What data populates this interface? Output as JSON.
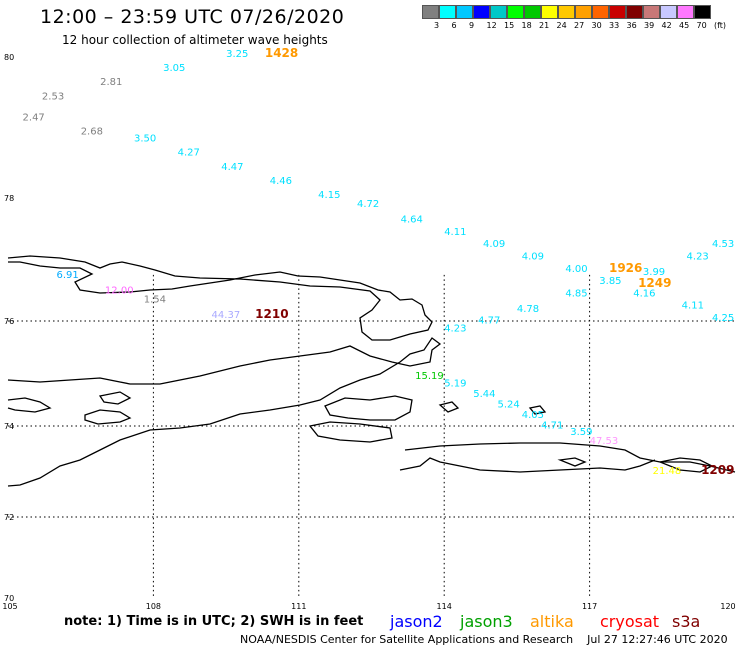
{
  "header": {
    "title": "12:00 – 23:59 UTC 07/26/2020",
    "subtitle": "12 hour collection of altimeter wave heights"
  },
  "color_scale": {
    "colors": [
      "#808080",
      "#00ffff",
      "#00c8ff",
      "#0000ff",
      "#00c8c8",
      "#00ff00",
      "#00c800",
      "#ffff00",
      "#ffc800",
      "#ffa000",
      "#ff6400",
      "#c80000",
      "#800000",
      "#c87878",
      "#c8c8ff",
      "#ff78ff",
      "#000000"
    ],
    "labels": [
      "3",
      "6",
      "9",
      "12",
      "15",
      "18",
      "21",
      "24",
      "27",
      "30",
      "33",
      "36",
      "39",
      "42",
      "45",
      "70",
      "(ft)"
    ]
  },
  "axes": {
    "lat_labels": [
      "80",
      "78",
      "76",
      "74",
      "72",
      "70"
    ],
    "lon_labels": [
      "105",
      "108",
      "111",
      "114",
      "117",
      "120"
    ]
  },
  "observations": [
    {
      "text": "3.25",
      "color": "#00e0ff",
      "lon": 109.5,
      "lat": 80.0
    },
    {
      "text": "1428",
      "color": "#ff9900",
      "lon": 110.3,
      "lat": 80.0,
      "bold": true
    },
    {
      "text": "3.05",
      "color": "#00e0ff",
      "lon": 108.2,
      "lat": 79.8
    },
    {
      "text": "2.81",
      "color": "#808080",
      "lon": 106.9,
      "lat": 79.6
    },
    {
      "text": "2.53",
      "color": "#808080",
      "lon": 105.7,
      "lat": 79.4
    },
    {
      "text": "2.47",
      "color": "#808080",
      "lon": 105.3,
      "lat": 79.1
    },
    {
      "text": "2.68",
      "color": "#808080",
      "lon": 106.5,
      "lat": 78.9
    },
    {
      "text": "3.50",
      "color": "#00e0ff",
      "lon": 107.6,
      "lat": 78.8
    },
    {
      "text": "4.27",
      "color": "#00e0ff",
      "lon": 108.5,
      "lat": 78.6
    },
    {
      "text": "4.47",
      "color": "#00e0ff",
      "lon": 109.4,
      "lat": 78.4
    },
    {
      "text": "4.46",
      "color": "#00e0ff",
      "lon": 110.4,
      "lat": 78.2
    },
    {
      "text": "4.15",
      "color": "#00e0ff",
      "lon": 111.4,
      "lat": 78.0
    },
    {
      "text": "4.72",
      "color": "#00e0ff",
      "lon": 112.2,
      "lat": 77.85
    },
    {
      "text": "4.64",
      "color": "#00e0ff",
      "lon": 113.1,
      "lat": 77.6
    },
    {
      "text": "4.11",
      "color": "#00e0ff",
      "lon": 114.0,
      "lat": 77.4
    },
    {
      "text": "4.09",
      "color": "#00e0ff",
      "lon": 114.8,
      "lat": 77.2
    },
    {
      "text": "4.09",
      "color": "#00e0ff",
      "lon": 115.6,
      "lat": 77.0
    },
    {
      "text": "4.00",
      "color": "#00e0ff",
      "lon": 116.5,
      "lat": 76.8
    },
    {
      "text": "1926",
      "color": "#ff9900",
      "lon": 117.4,
      "lat": 76.8,
      "bold": true
    },
    {
      "text": "3.99",
      "color": "#00e0ff",
      "lon": 118.1,
      "lat": 76.75
    },
    {
      "text": "4.23",
      "color": "#00e0ff",
      "lon": 119.0,
      "lat": 77.0
    },
    {
      "text": "4.53",
      "color": "#00e0ff",
      "lon": 120.0,
      "lat": 77.2
    },
    {
      "text": "3.85",
      "color": "#00e0ff",
      "lon": 117.2,
      "lat": 76.6
    },
    {
      "text": "1249",
      "color": "#ff9900",
      "lon": 118.0,
      "lat": 76.55,
      "bold": true
    },
    {
      "text": "4.85",
      "color": "#00e0ff",
      "lon": 116.5,
      "lat": 76.4
    },
    {
      "text": "4.16",
      "color": "#00e0ff",
      "lon": 117.9,
      "lat": 76.4
    },
    {
      "text": "4.11",
      "color": "#00e0ff",
      "lon": 118.9,
      "lat": 76.2
    },
    {
      "text": "4.78",
      "color": "#00e0ff",
      "lon": 115.5,
      "lat": 76.15
    },
    {
      "text": "4.25",
      "color": "#00e0ff",
      "lon": 119.8,
      "lat": 76.0
    },
    {
      "text": "4.77",
      "color": "#00e0ff",
      "lon": 114.7,
      "lat": 75.95
    },
    {
      "text": "4.23",
      "color": "#00e0ff",
      "lon": 114.0,
      "lat": 75.8
    },
    {
      "text": "6.91",
      "color": "#00aaff",
      "lon": 106.0,
      "lat": 76.7
    },
    {
      "text": "12.00",
      "color": "#ff66ff",
      "lon": 107.0,
      "lat": 76.45
    },
    {
      "text": "1.54",
      "color": "#808080",
      "lon": 107.8,
      "lat": 76.3
    },
    {
      "text": "44.37",
      "color": "#aaaaff",
      "lon": 109.2,
      "lat": 76.05
    },
    {
      "text": "1210",
      "color": "#800000",
      "lon": 110.1,
      "lat": 76.05,
      "bold": true
    },
    {
      "text": "15.19",
      "color": "#00c800",
      "lon": 113.4,
      "lat": 74.9
    },
    {
      "text": "5.19",
      "color": "#00e0ff",
      "lon": 114.0,
      "lat": 74.75
    },
    {
      "text": "5.44",
      "color": "#00e0ff",
      "lon": 114.6,
      "lat": 74.55
    },
    {
      "text": "5.24",
      "color": "#00e0ff",
      "lon": 115.1,
      "lat": 74.35
    },
    {
      "text": "4.05",
      "color": "#00e0ff",
      "lon": 115.6,
      "lat": 74.15
    },
    {
      "text": "4.71",
      "color": "#00e0ff",
      "lon": 116.0,
      "lat": 73.95
    },
    {
      "text": "3.59",
      "color": "#00e0ff",
      "lon": 116.6,
      "lat": 73.8
    },
    {
      "text": "47.53",
      "color": "#ff99ff",
      "lon": 117.0,
      "lat": 73.6
    },
    {
      "text": "21.48",
      "color": "#ffff00",
      "lon": 118.3,
      "lat": 72.95
    },
    {
      "text": "1209",
      "color": "#800000",
      "lon": 119.3,
      "lat": 72.95,
      "bold": true
    }
  ],
  "legend": {
    "note": "note: 1) Time is in UTC; 2) SWH is in feet",
    "items": [
      {
        "label": "jason2",
        "color": "#0000ff"
      },
      {
        "label": "jason3",
        "color": "#00a000"
      },
      {
        "label": "altika",
        "color": "#ff9900"
      },
      {
        "label": "cryosat",
        "color": "#ff0000"
      },
      {
        "label": "s3a",
        "color": "#800000"
      }
    ]
  },
  "footer": {
    "agency": "NOAA/NESDIS Center for Satellite Applications and Research",
    "timestamp": "Jul 27 12:27:46 UTC 2020"
  }
}
